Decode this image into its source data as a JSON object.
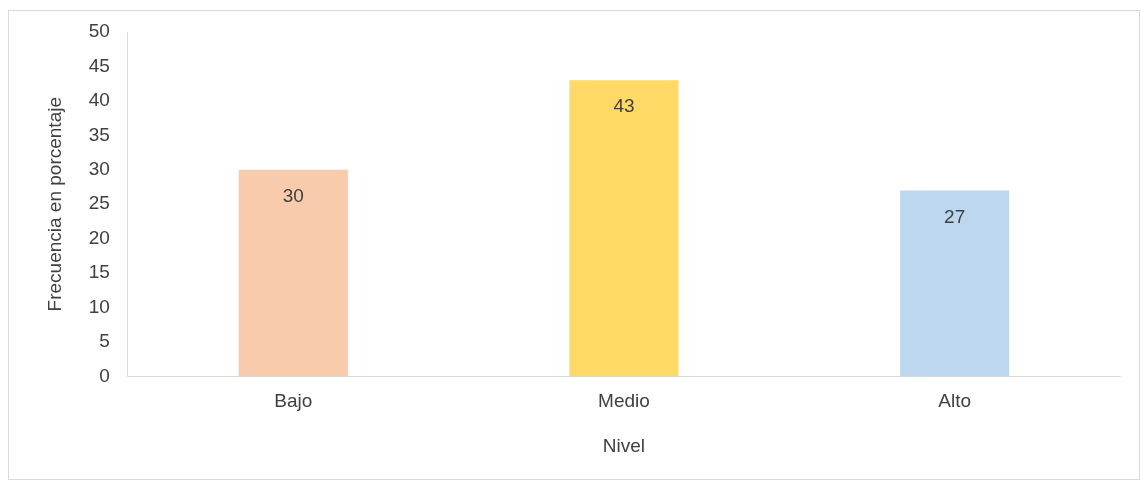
{
  "chart_data": {
    "type": "bar",
    "xlabel": "Nivel",
    "ylabel": "Frecuencia en porcentaje",
    "categories": [
      "Bajo",
      "Medio",
      "Alto"
    ],
    "values": [
      30,
      43,
      27
    ],
    "colors": [
      "#f8cbad",
      "#ffd966",
      "#bdd7ee"
    ],
    "ylim": [
      0,
      50
    ],
    "yticks": [
      0,
      5,
      10,
      15,
      20,
      25,
      30,
      35,
      40,
      45,
      50
    ],
    "grid": false,
    "legend": false,
    "data_labels": true
  }
}
